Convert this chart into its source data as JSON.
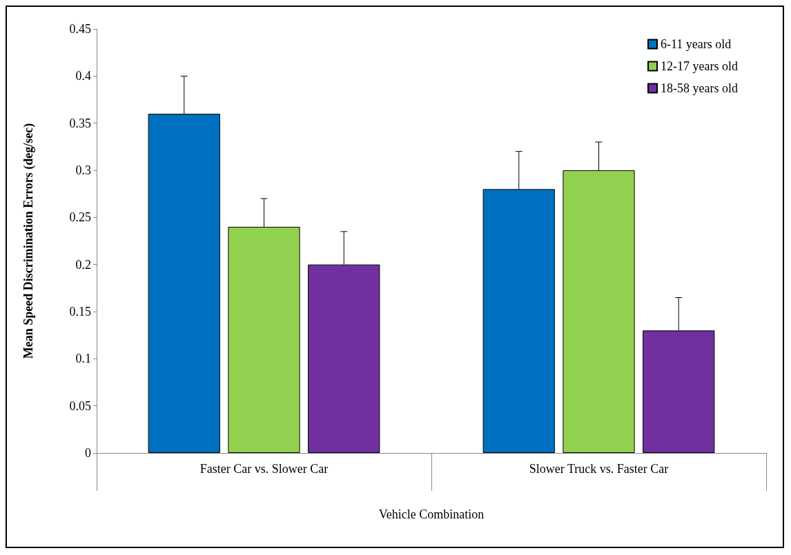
{
  "chart_data": {
    "type": "bar",
    "xlabel": "Vehicle Combination",
    "ylabel": "Mean Speed Discrimination Errors (deg/sec)",
    "categories": [
      "Faster Car vs. Slower Car",
      "Slower Truck vs. Faster Car"
    ],
    "series": [
      {
        "name": "6-11 years old",
        "color": "#0070c0",
        "values": [
          0.36,
          0.28
        ],
        "errors": [
          [
            0.36,
            0.4
          ],
          [
            0.28,
            0.32
          ]
        ]
      },
      {
        "name": "12-17 years old",
        "color": "#92d050",
        "values": [
          0.24,
          0.3
        ],
        "errors": [
          [
            0.24,
            0.27
          ],
          [
            0.3,
            0.33
          ]
        ]
      },
      {
        "name": "18-58 years old",
        "color": "#7030a0",
        "values": [
          0.2,
          0.13
        ],
        "errors": [
          [
            0.2,
            0.235
          ],
          [
            0.13,
            0.165
          ]
        ]
      }
    ],
    "ylim": [
      0,
      0.45
    ],
    "yticks": [
      0,
      0.05,
      0.1,
      0.15,
      0.2,
      0.25,
      0.3,
      0.35,
      0.4,
      0.45
    ],
    "grid": false,
    "legend": "top right"
  }
}
